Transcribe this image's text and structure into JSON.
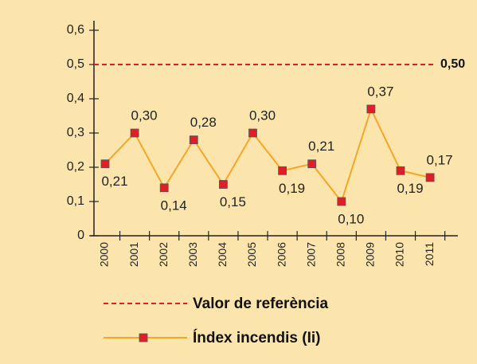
{
  "chart_data": {
    "type": "line",
    "categories": [
      "2000",
      "2001",
      "2002",
      "2003",
      "2004",
      "2005",
      "2006",
      "2007",
      "2008",
      "2009",
      "2010",
      "2011"
    ],
    "series": [
      {
        "name": "Índex incendis (Ii)",
        "color": "#f5a623",
        "marker_color": "#e01e26",
        "values": [
          0.21,
          0.3,
          0.14,
          0.28,
          0.15,
          0.3,
          0.19,
          0.21,
          0.1,
          0.37,
          0.19,
          0.17
        ],
        "value_labels": [
          "0,21",
          "0,30",
          "0,14",
          "0,28",
          "0,15",
          "0,30",
          "0,19",
          "0,21",
          "0,10",
          "0,37",
          "0,19",
          "0,17"
        ]
      }
    ],
    "reference": {
      "name": "Valor de referència",
      "value": 0.5,
      "label": "0,50",
      "color": "#e01e26"
    },
    "ylim": [
      0,
      0.6
    ],
    "yticks": [
      0,
      {
        "value": 0.1,
        "label": "0,1"
      },
      {
        "value": 0.2,
        "label": "0,2"
      },
      {
        "value": 0.3,
        "label": "0,3"
      },
      {
        "value": 0.4,
        "label": "0,4"
      },
      {
        "value": 0.5,
        "label": "0,5"
      },
      {
        "value": 0.6,
        "label": "0,6"
      }
    ],
    "background": "#fce5ad"
  }
}
